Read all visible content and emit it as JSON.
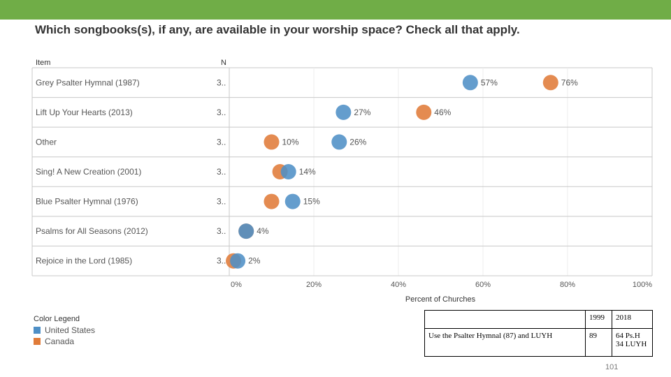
{
  "page": {
    "title": "Which songbooks(s), if any, are available in your worship space? Check all that apply.",
    "page_number": "101"
  },
  "colors": {
    "united_states": "#4e8fc6",
    "canada": "#e07b39",
    "header_bar": "#70ad47"
  },
  "chart_data": {
    "type": "scatter",
    "title": "Which songbooks(s), if any, are available in your worship space? Check all that apply.",
    "xlabel": "Percent of Churches",
    "column_headers": {
      "item": "Item",
      "n": "N"
    },
    "xlim": [
      0,
      100
    ],
    "x_ticks": [
      "0%",
      "20%",
      "40%",
      "60%",
      "80%",
      "100%"
    ],
    "categories": [
      "Grey Psalter Hymnal (1987)",
      "Lift Up Your Hearts (2013)",
      "Other",
      "Sing! A New Creation (2001)",
      "Blue Psalter Hymnal (1976)",
      "Psalms for All Seasons (2012)",
      "Rejoice in the Lord (1985)"
    ],
    "n_labels": [
      "3..",
      "3..",
      "3..",
      "3..",
      "3..",
      "3..",
      "3.."
    ],
    "series": [
      {
        "name": "United States",
        "values": [
          57,
          27,
          26,
          14,
          15,
          4,
          2
        ],
        "labels": [
          "57%",
          "27%",
          "26%",
          "14%",
          "15%",
          "4%",
          "2%"
        ]
      },
      {
        "name": "Canada",
        "values": [
          76,
          46,
          10,
          12,
          10,
          4,
          1
        ],
        "labels": [
          "76%",
          "46%",
          "10%",
          "",
          "",
          "",
          ""
        ]
      }
    ],
    "legend": {
      "title": "Color Legend",
      "entries": [
        "United States",
        "Canada"
      ]
    }
  },
  "notes_table": {
    "header": [
      "",
      "1999",
      "2018"
    ],
    "row": {
      "label": "Use the Psalter Hymnal (87) and LUYH",
      "value_1999": "89",
      "value_2018_line1": "64 Ps.H",
      "value_2018_line2": "34 LUYH"
    }
  }
}
